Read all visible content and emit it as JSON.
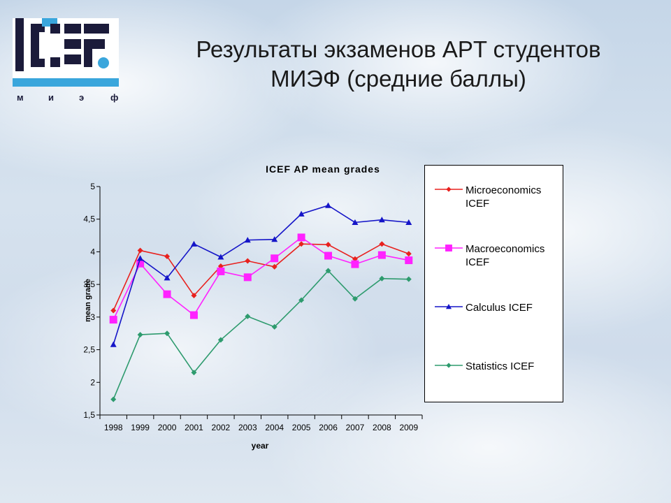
{
  "slide": {
    "title_line1": "Результаты экзаменов APT студентов",
    "title_line2": "МИЭФ (средние баллы)"
  },
  "logo": {
    "wordmark": "ICEF",
    "sub_letters": [
      "м",
      "и",
      "э",
      "ф"
    ],
    "colors": {
      "dark": "#1b1b3a",
      "blue": "#3aa6dc"
    }
  },
  "chart_data": {
    "type": "line",
    "title": "ICEF AP mean grades",
    "xlabel": "year",
    "ylabel": "mean grade",
    "ylim": [
      1.5,
      5
    ],
    "yticks": [
      "1,5",
      "2",
      "2,5",
      "3",
      "3,5",
      "4",
      "4,5",
      "5"
    ],
    "ytick_values": [
      1.5,
      2,
      2.5,
      3,
      3.5,
      4,
      4.5,
      5
    ],
    "categories": [
      "1998",
      "1999",
      "2000",
      "2001",
      "2002",
      "2003",
      "2004",
      "2005",
      "2006",
      "2007",
      "2008",
      "2009"
    ],
    "grid": false,
    "legend_position": "right",
    "series": [
      {
        "name": "Microeconomics ICEF",
        "color": "#e8211e",
        "marker": "diamond",
        "values": [
          3.1,
          4.02,
          3.93,
          3.33,
          3.78,
          3.86,
          3.77,
          4.12,
          4.11,
          3.89,
          4.12,
          3.97
        ]
      },
      {
        "name": "Macroeconomics ICEF",
        "color": "#ff22ff",
        "marker": "square",
        "values": [
          2.96,
          3.82,
          3.35,
          3.03,
          3.7,
          3.61,
          3.9,
          4.22,
          3.94,
          3.81,
          3.95,
          3.87
        ]
      },
      {
        "name": "Calculus ICEF",
        "color": "#1515c8",
        "marker": "triangle",
        "values": [
          2.58,
          3.9,
          3.6,
          4.12,
          3.92,
          4.18,
          4.19,
          4.58,
          4.71,
          4.45,
          4.49,
          4.45
        ]
      },
      {
        "name": "Statistics ICEF",
        "color": "#2e9b6e",
        "marker": "diamond",
        "values": [
          1.74,
          2.73,
          2.75,
          2.15,
          2.65,
          3.01,
          2.85,
          3.26,
          3.71,
          3.28,
          3.59,
          3.58
        ]
      }
    ]
  }
}
